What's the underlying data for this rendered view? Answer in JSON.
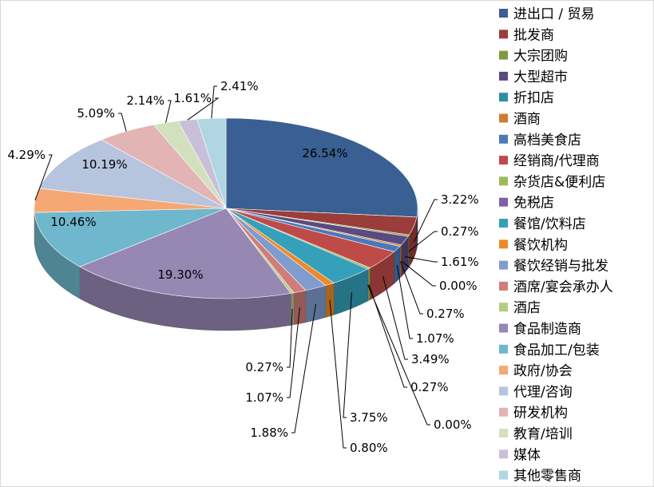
{
  "chart_data": {
    "type": "pie",
    "style": "3d-exploded",
    "legend_position": "right",
    "slices": [
      {
        "label": "进出口 / 贸易",
        "value": 26.54,
        "display": "26.54%",
        "color": "#3a5f92"
      },
      {
        "label": "批发商",
        "value": 3.22,
        "display": "3.22%",
        "color": "#9b3d3a"
      },
      {
        "label": "大宗团购",
        "value": 0.27,
        "display": "0.27%",
        "color": "#7e9b3f"
      },
      {
        "label": "大型超市",
        "value": 1.61,
        "display": "1.61%",
        "color": "#5b4a80"
      },
      {
        "label": "折扣店",
        "value": 0.0,
        "display": "0.00%",
        "color": "#2f8ea6"
      },
      {
        "label": "酒商",
        "value": 0.27,
        "display": "0.27%",
        "color": "#d07c2c"
      },
      {
        "label": "高档美食店",
        "value": 1.07,
        "display": "1.07%",
        "color": "#4b78b8"
      },
      {
        "label": "经销商/代理商",
        "value": 3.49,
        "display": "3.49%",
        "color": "#bf4b48"
      },
      {
        "label": "杂货店&便利店",
        "value": 0.27,
        "display": "0.27%",
        "color": "#9bbb59"
      },
      {
        "label": "免税店",
        "value": 0.0,
        "display": "0.00%",
        "color": "#7f5fa6"
      },
      {
        "label": "餐馆/饮料店",
        "value": 3.75,
        "display": "3.75%",
        "color": "#35a0b9"
      },
      {
        "label": "餐饮机构",
        "value": 0.8,
        "display": "0.80%",
        "color": "#ec8a2a"
      },
      {
        "label": "餐饮经销与批发",
        "value": 1.88,
        "display": "1.88%",
        "color": "#7f9ccd"
      },
      {
        "label": "酒席/宴会承办人",
        "value": 1.07,
        "display": "1.07%",
        "color": "#cf7c7a"
      },
      {
        "label": "酒店",
        "value": 0.27,
        "display": "0.27%",
        "color": "#b4cc84"
      },
      {
        "label": "食品制造商",
        "value": 19.3,
        "display": "19.30%",
        "color": "#9787b3"
      },
      {
        "label": "食品加工/包装",
        "value": 10.46,
        "display": "10.46%",
        "color": "#6eb7cc"
      },
      {
        "label": "政府/协会",
        "value": 4.29,
        "display": "4.29%",
        "color": "#f5a874"
      },
      {
        "label": "代理/咨询",
        "value": 10.19,
        "display": "10.19%",
        "color": "#b7c4dd"
      },
      {
        "label": "研发机构",
        "value": 5.09,
        "display": "5.09%",
        "color": "#e2b4b3"
      },
      {
        "label": "教育/培训",
        "value": 2.14,
        "display": "2.14%",
        "color": "#d3e0bd"
      },
      {
        "label": "媒体",
        "value": 1.61,
        "display": "1.61%",
        "color": "#cabfd8"
      },
      {
        "label": "其他零售商",
        "value": 2.41,
        "display": "2.41%",
        "color": "#afd6e2"
      }
    ]
  }
}
